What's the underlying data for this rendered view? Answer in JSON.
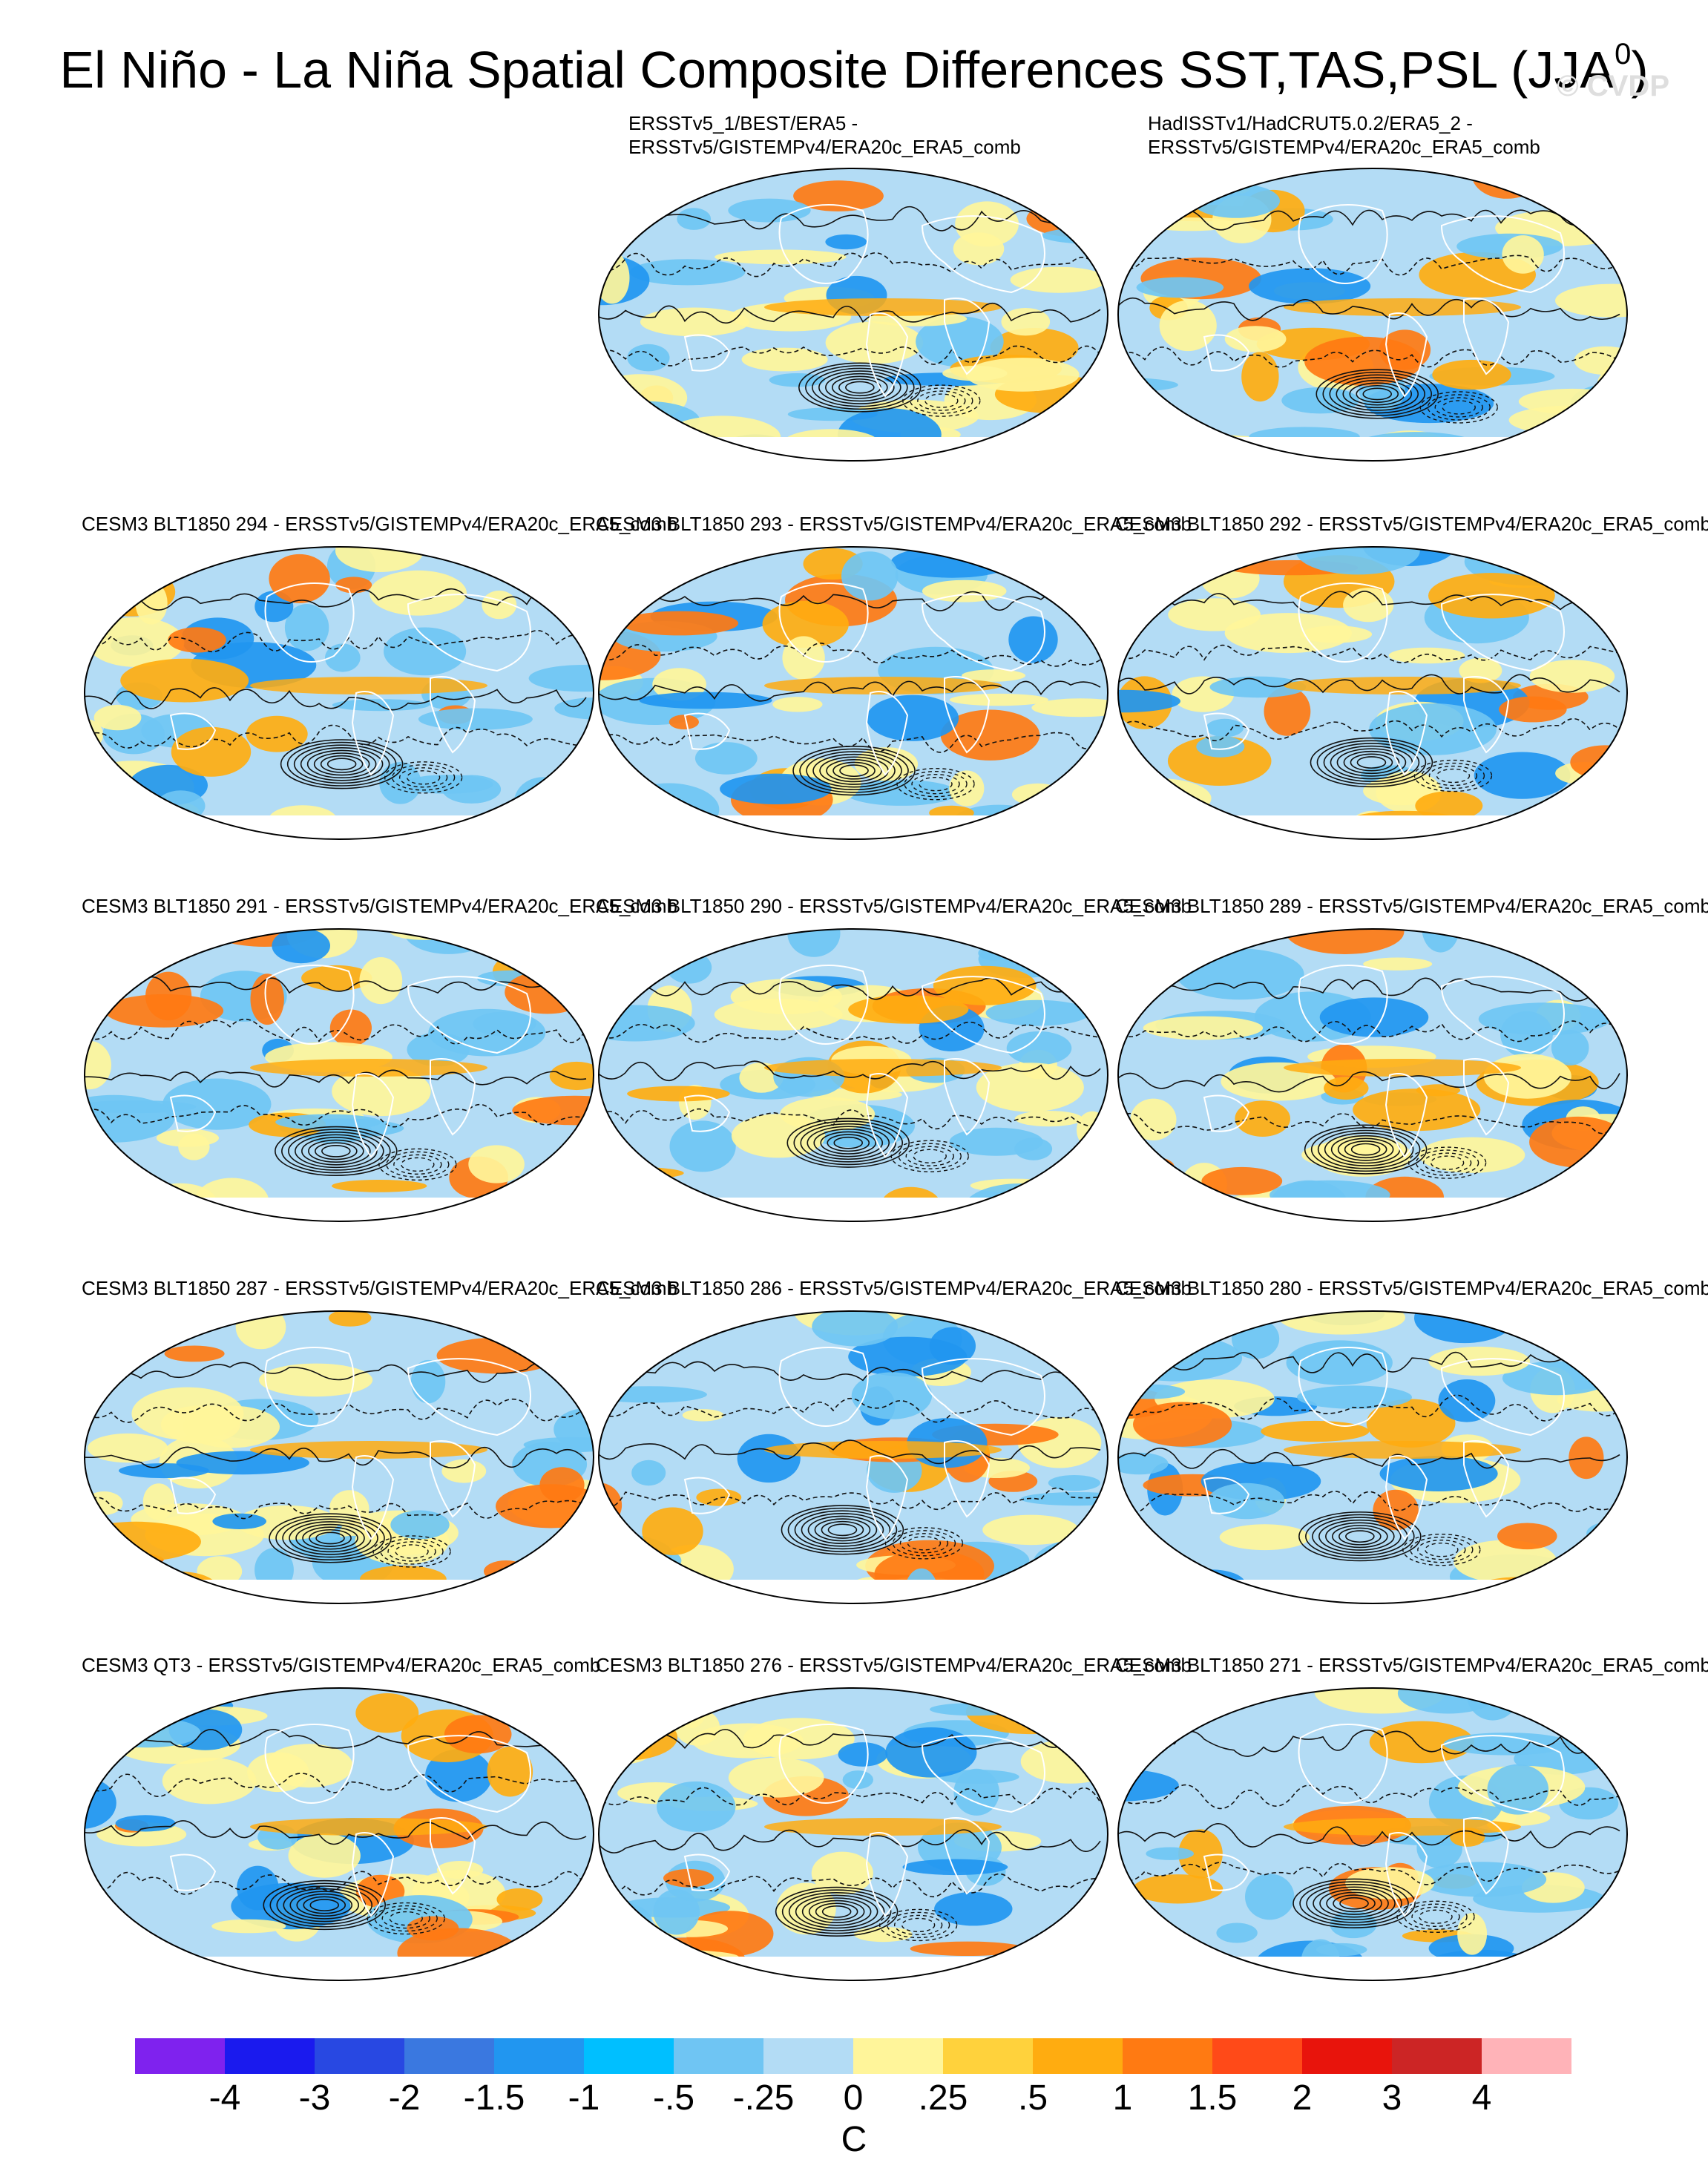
{
  "title": {
    "main": "El Niño - La Niña Spatial Composite Differences SST,TAS,PSL (JJA",
    "sup": "0",
    "close": ")"
  },
  "copyright": "© CVDP",
  "panels": [
    {
      "line1": "ERSSTv5_1/BEST/ERA5 -",
      "line2": "ERSSTv5/GISTEMPv4/ERA20c_ERA5_comb"
    },
    {
      "line1": "HadISSTv1/HadCRUT5.0.2/ERA5_2 -",
      "line2": "ERSSTv5/GISTEMPv4/ERA20c_ERA5_comb"
    },
    {
      "line1": "CESM3 BLT1850 294 - ERSSTv5/GISTEMPv4/ERA20c_ERA5_comb"
    },
    {
      "line1": "CESM3 BLT1850 293 - ERSSTv5/GISTEMPv4/ERA20c_ERA5_comb"
    },
    {
      "line1": "CESM3 BLT1850 292 - ERSSTv5/GISTEMPv4/ERA20c_ERA5_comb"
    },
    {
      "line1": "CESM3 BLT1850 291 - ERSSTv5/GISTEMPv4/ERA20c_ERA5_comb"
    },
    {
      "line1": "CESM3 BLT1850 290 - ERSSTv5/GISTEMPv4/ERA20c_ERA5_comb"
    },
    {
      "line1": "CESM3 BLT1850 289 - ERSSTv5/GISTEMPv4/ERA20c_ERA5_comb"
    },
    {
      "line1": "CESM3 BLT1850 287 - ERSSTv5/GISTEMPv4/ERA20c_ERA5_comb"
    },
    {
      "line1": "CESM3 BLT1850 286 - ERSSTv5/GISTEMPv4/ERA20c_ERA5_comb"
    },
    {
      "line1": "CESM3 BLT1850 280 - ERSSTv5/GISTEMPv4/ERA20c_ERA5_comb"
    },
    {
      "line1": "CESM3 QT3 - ERSSTv5/GISTEMPv4/ERA20c_ERA5_comb"
    },
    {
      "line1": "CESM3 BLT1850 276 - ERSSTv5/GISTEMPv4/ERA20c_ERA5_comb"
    },
    {
      "line1": "CESM3 BLT1850 271 - ERSSTv5/GISTEMPv4/ERA20c_ERA5_comb"
    }
  ],
  "colorbar": {
    "colors": [
      "#7f22ee",
      "#1a1aee",
      "#2848e2",
      "#3a78e0",
      "#2196f0",
      "#00bfff",
      "#6fc5f3",
      "#b3dcf5",
      "#fff59a",
      "#ffd23c",
      "#ffac10",
      "#ff7a12",
      "#ff4a18",
      "#e8140c",
      "#cc2525",
      "#ffb3b8"
    ],
    "labels": [
      "-4",
      "-3",
      "-2",
      "-1.5",
      "-1",
      "-.5",
      "-.25",
      "0",
      ".25",
      ".5",
      "1",
      "1.5",
      "2",
      "3",
      "4"
    ],
    "units": "C"
  },
  "palette": {
    "ocean_blue": "#b3dcf5",
    "mid_blue": "#6fc5f3",
    "deep_blue": "#2196f0",
    "yellow": "#fff59a",
    "orange": "#ffac10",
    "red_orange": "#ff7a12"
  }
}
